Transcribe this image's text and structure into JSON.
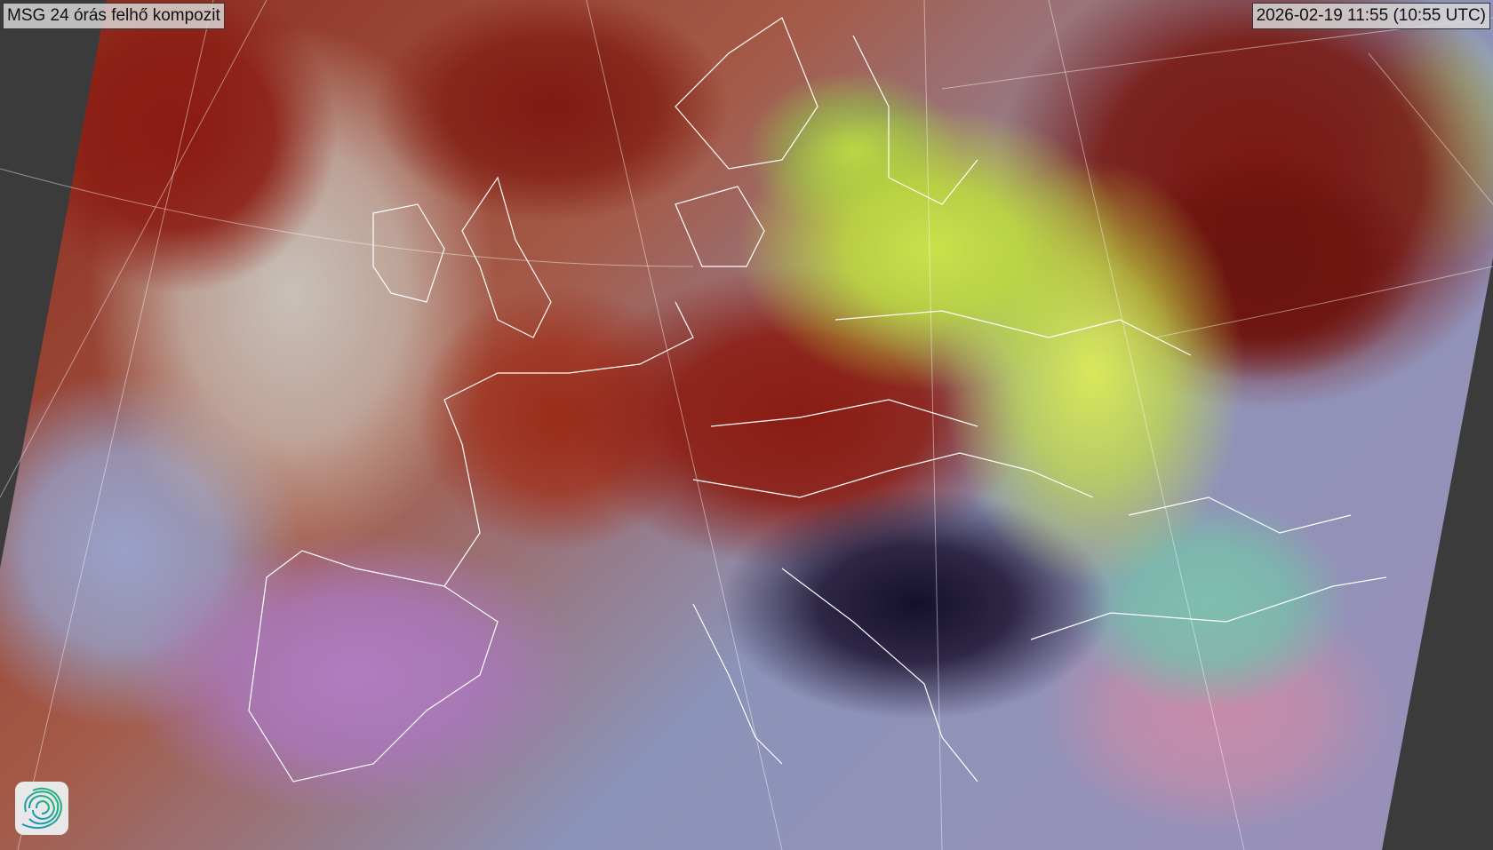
{
  "map": {
    "title": "MSG 24 órás felhő kompozit",
    "timestamp": "2026-02-19 11:55 (10:55 UTC)",
    "background_color": "#3b3b3b",
    "logo_icon": "swirl-logo-icon",
    "logo_colors": [
      "#2bb673",
      "#1a8fc4"
    ]
  }
}
